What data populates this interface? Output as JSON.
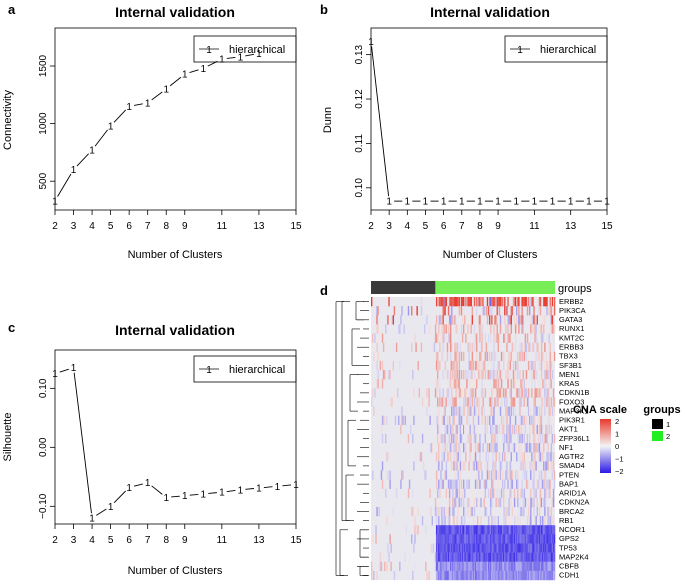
{
  "panels": {
    "a": {
      "label": "a"
    },
    "b": {
      "label": "b"
    },
    "c": {
      "label": "c"
    },
    "d": {
      "label": "d"
    }
  },
  "chart_data": [
    {
      "id": "a",
      "type": "line",
      "title": "Internal validation",
      "xlabel": "Number of Clusters",
      "ylabel": "Connectivity",
      "x": [
        2,
        3,
        4,
        5,
        6,
        7,
        8,
        9,
        10,
        11,
        12,
        13
      ],
      "series": [
        {
          "name": "hierarchical",
          "marker": "1",
          "values": [
            330,
            600,
            770,
            980,
            1150,
            1180,
            1300,
            1430,
            1480,
            1560,
            1580,
            1610
          ]
        }
      ],
      "xlim": [
        2,
        15
      ],
      "ylim": [
        250,
        1830
      ],
      "xticks": [
        2,
        3,
        4,
        5,
        6,
        7,
        8,
        9,
        11,
        13,
        15
      ],
      "yticks": [
        500,
        1000,
        1500
      ],
      "legend": "top-right"
    },
    {
      "id": "b",
      "type": "line",
      "title": "Internal validation",
      "xlabel": "Number of Clusters",
      "ylabel": "Dunn",
      "x": [
        2,
        3,
        4,
        5,
        6,
        7,
        8,
        9,
        10,
        11,
        12,
        13,
        14,
        15
      ],
      "series": [
        {
          "name": "hierarchical",
          "marker": "1",
          "values": [
            0.133,
            0.097,
            0.097,
            0.097,
            0.097,
            0.097,
            0.097,
            0.097,
            0.097,
            0.097,
            0.097,
            0.097,
            0.097,
            0.097
          ]
        }
      ],
      "xlim": [
        2,
        15
      ],
      "ylim": [
        0.095,
        0.136
      ],
      "xticks": [
        2,
        3,
        4,
        5,
        6,
        7,
        8,
        9,
        11,
        13,
        15
      ],
      "yticks": [
        0.1,
        0.11,
        0.12,
        0.13
      ],
      "legend": "top-right"
    },
    {
      "id": "c",
      "type": "line",
      "title": "Internal validation",
      "xlabel": "Number of Clusters",
      "ylabel": "Silhouette",
      "x": [
        2,
        3,
        4,
        5,
        6,
        7,
        8,
        9,
        10,
        11,
        12,
        13,
        14,
        15
      ],
      "series": [
        {
          "name": "hierarchical",
          "marker": "1",
          "values": [
            0.125,
            0.135,
            -0.12,
            -0.1,
            -0.068,
            -0.06,
            -0.085,
            -0.082,
            -0.079,
            -0.076,
            -0.072,
            -0.069,
            -0.066,
            -0.063
          ]
        }
      ],
      "xlim": [
        2,
        15
      ],
      "ylim": [
        -0.13,
        0.165
      ],
      "xticks": [
        2,
        3,
        4,
        5,
        6,
        7,
        8,
        9,
        11,
        13,
        15
      ],
      "yticks": [
        0.1,
        0.0,
        -0.1
      ],
      "legend": "top-right"
    },
    {
      "id": "d",
      "type": "heatmap",
      "annotation_label": "groups",
      "group_label_1": "1",
      "group_label_2": "2",
      "group_colors": [
        "#3a3a3a",
        "#77ee55"
      ],
      "group_fraction_1": 0.35,
      "rows": [
        "ERBB2",
        "PIK3CA",
        "GATA3",
        "RUNX1",
        "KMT2C",
        "ERBB3",
        "TBX3",
        "SF3B1",
        "MEN1",
        "KRAS",
        "CDKN1B",
        "FOXO3",
        "MAP3K1",
        "PIK3R1",
        "AKT1",
        "ZFP36L1",
        "NF1",
        "AGTR2",
        "SMAD4",
        "PTEN",
        "BAP1",
        "ARID1A",
        "CDKN2A",
        "BRCA2",
        "RB1",
        "NCOR1",
        "GPS2",
        "TP53",
        "MAP2K4",
        "CBFB",
        "CDH1"
      ],
      "legend_title": "CNA scale",
      "scale_ticks": [
        "2",
        "1",
        "0",
        "−1",
        "−2"
      ],
      "scale_colors": [
        "#e8392c",
        "#f4f4f4",
        "#2a1ae6"
      ]
    }
  ]
}
